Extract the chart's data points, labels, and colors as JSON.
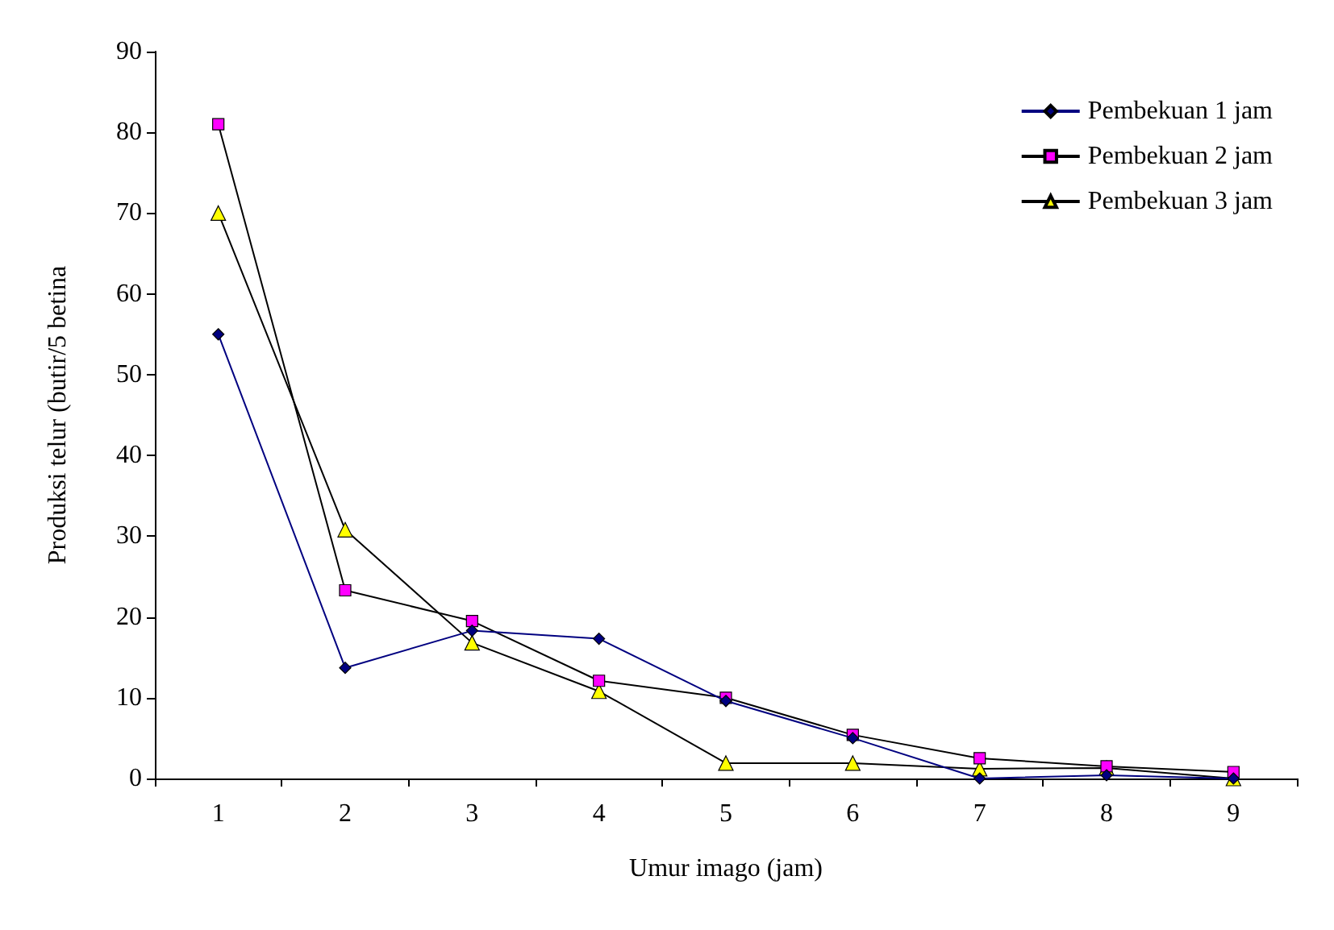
{
  "chart_data": {
    "type": "line",
    "xlabel": "Umur imago (jam)",
    "ylabel": "Produksi telur (butir/5 betina",
    "categories": [
      "1",
      "2",
      "3",
      "4",
      "5",
      "6",
      "7",
      "8",
      "9"
    ],
    "ylim": [
      0,
      90
    ],
    "yticks": [
      0,
      10,
      20,
      30,
      40,
      50,
      60,
      70,
      80,
      90
    ],
    "grid": false,
    "legend": "top right",
    "line_style": "solid",
    "series": [
      {
        "name": "Pembekuan 1 jam",
        "color": "#000080",
        "marker": "diamond",
        "values": [
          55,
          13.7,
          18.3,
          17.3,
          9.6,
          5.0,
          0,
          0.4,
          0
        ]
      },
      {
        "name": "Pembekuan 2 jam",
        "color": "#ff00ff",
        "marker": "square",
        "values": [
          81,
          23.3,
          19.5,
          12.1,
          10.0,
          5.4,
          2.5,
          1.5,
          0.8
        ]
      },
      {
        "name": "Pembekuan 3 jam",
        "color": "#ffff00",
        "marker": "triangle",
        "values": [
          70,
          30.8,
          16.8,
          10.8,
          1.9,
          1.9,
          1.2,
          1.3,
          0
        ]
      }
    ]
  }
}
